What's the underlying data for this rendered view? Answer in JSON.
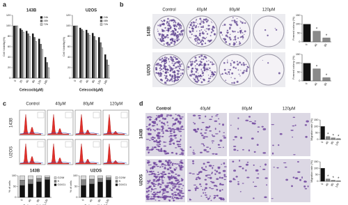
{
  "panels": {
    "a": {
      "label": "a"
    },
    "b": {
      "label": "b",
      "columns": [
        "Control",
        "40μM",
        "80μM",
        "120μM"
      ],
      "rows": [
        "143B",
        "U2OS"
      ]
    },
    "c": {
      "label": "c",
      "columns": [
        "Control",
        "40μM",
        "80μM",
        "120μM"
      ],
      "rows": [
        "143B",
        "U2OS"
      ]
    },
    "d": {
      "label": "d",
      "columns": [
        "Control",
        "40μM",
        "80μM",
        "120μM"
      ],
      "rows": [
        "143B",
        "U2OS"
      ]
    }
  },
  "chart_data": [
    {
      "type": "bar",
      "title": "143B",
      "y_label": "Cell Viability(%)",
      "x_label": "Celecoxib(μM)",
      "categories": [
        "0",
        "20",
        "40",
        "80",
        "120",
        "160"
      ],
      "series": [
        {
          "name": "24h",
          "color": "#111111",
          "values": [
            100,
            95,
            90,
            85,
            75,
            40
          ]
        },
        {
          "name": "48h",
          "color": "#6e6e6e",
          "values": [
            100,
            92,
            85,
            78,
            65,
            30
          ]
        },
        {
          "name": "72h",
          "color": "#c8c8c8",
          "values": [
            100,
            88,
            80,
            70,
            55,
            20
          ]
        }
      ],
      "ylim": [
        0,
        120
      ],
      "yticks": [
        0,
        20,
        40,
        60,
        80,
        100,
        120
      ],
      "legend": "inside-right"
    },
    {
      "type": "bar",
      "title": "U2OS",
      "y_label": "Cell Viability(%)",
      "x_label": "Celecoxib(μM)",
      "categories": [
        "0",
        "20",
        "40",
        "80",
        "120",
        "160"
      ],
      "series": [
        {
          "name": "24h",
          "color": "#111111",
          "values": [
            100,
            96,
            92,
            86,
            78,
            45
          ]
        },
        {
          "name": "48h",
          "color": "#6e6e6e",
          "values": [
            100,
            93,
            86,
            80,
            68,
            35
          ]
        },
        {
          "name": "72h",
          "color": "#c8c8c8",
          "values": [
            100,
            90,
            82,
            72,
            58,
            25
          ]
        }
      ],
      "ylim": [
        0,
        120
      ],
      "yticks": [
        0,
        20,
        40,
        60,
        80,
        100,
        120
      ],
      "legend": "inside-right"
    },
    {
      "type": "bar",
      "y_label": "Formed colony (%)",
      "categories": [
        "0",
        "40",
        "80"
      ],
      "series": [
        {
          "color": "#111111",
          "colors": [
            "#111111",
            "#8a8a8a",
            "#8a8a8a"
          ],
          "values": [
            100,
            60,
            22
          ]
        }
      ],
      "ylim": [
        0,
        150
      ],
      "yticks": [
        0,
        50,
        100,
        150
      ],
      "annotations": [
        "*",
        "*"
      ]
    },
    {
      "type": "bar",
      "y_label": "Formed colony (%)",
      "categories": [
        "0",
        "40",
        "80"
      ],
      "series": [
        {
          "color": "#111111",
          "colors": [
            "#111111",
            "#8a8a8a",
            "#8a8a8a"
          ],
          "values": [
            100,
            68,
            18
          ]
        }
      ],
      "ylim": [
        0,
        150
      ],
      "yticks": [
        0,
        50,
        100,
        150
      ],
      "annotations": [
        "*",
        "*"
      ]
    },
    {
      "type": "bar",
      "stacked": true,
      "title": "143B",
      "y_label": "% of cells",
      "x_label": "Celecoxib(μM)",
      "categories": [
        "0",
        "40",
        "80",
        "120"
      ],
      "series": [
        {
          "name": "G2/M",
          "color": "#d9d9d9",
          "values": [
            20,
            18,
            12,
            8
          ]
        },
        {
          "name": "S",
          "color": "#808080",
          "values": [
            25,
            20,
            16,
            10
          ]
        },
        {
          "name": "G0/G1",
          "color": "#111111",
          "values": [
            55,
            62,
            72,
            82
          ]
        }
      ],
      "ylim": [
        0,
        100
      ],
      "yticks": [
        0,
        50,
        100
      ],
      "legend": "outside-right"
    },
    {
      "type": "bar",
      "stacked": true,
      "title": "U2OS",
      "y_label": "% of cells",
      "x_label": "Celecoxib(μM)",
      "categories": [
        "0",
        "40",
        "80",
        "120"
      ],
      "series": [
        {
          "name": "G2/M",
          "color": "#d9d9d9",
          "values": [
            18,
            16,
            12,
            9
          ]
        },
        {
          "name": "S",
          "color": "#808080",
          "values": [
            27,
            22,
            17,
            11
          ]
        },
        {
          "name": "G0/G1",
          "color": "#111111",
          "values": [
            55,
            62,
            71,
            80
          ]
        }
      ],
      "ylim": [
        0,
        100
      ],
      "yticks": [
        0,
        50,
        100
      ],
      "legend": "outside-right"
    },
    {
      "type": "bar",
      "y_label": "Migration rate (%)",
      "categories": [
        "0",
        "40",
        "80",
        "120"
      ],
      "series": [
        {
          "color": "#111111",
          "colors": [
            "#111111",
            "#8a8a8a",
            "#8a8a8a",
            "#8a8a8a"
          ],
          "values": [
            100,
            22,
            12,
            6
          ]
        }
      ],
      "ylim": [
        0,
        150
      ],
      "yticks": [
        0,
        50,
        100,
        150
      ],
      "annotations": [
        "*",
        "*",
        "*"
      ]
    },
    {
      "type": "bar",
      "y_label": "Migration rate (%)",
      "categories": [
        "0",
        "40",
        "80",
        "120"
      ],
      "series": [
        {
          "color": "#111111",
          "colors": [
            "#111111",
            "#8a8a8a",
            "#8a8a8a",
            "#8a8a8a"
          ],
          "values": [
            100,
            18,
            8,
            4
          ]
        }
      ],
      "ylim": [
        0,
        150
      ],
      "yticks": [
        0,
        50,
        100,
        150
      ],
      "annotations": [
        "*",
        "*",
        "*"
      ]
    }
  ]
}
